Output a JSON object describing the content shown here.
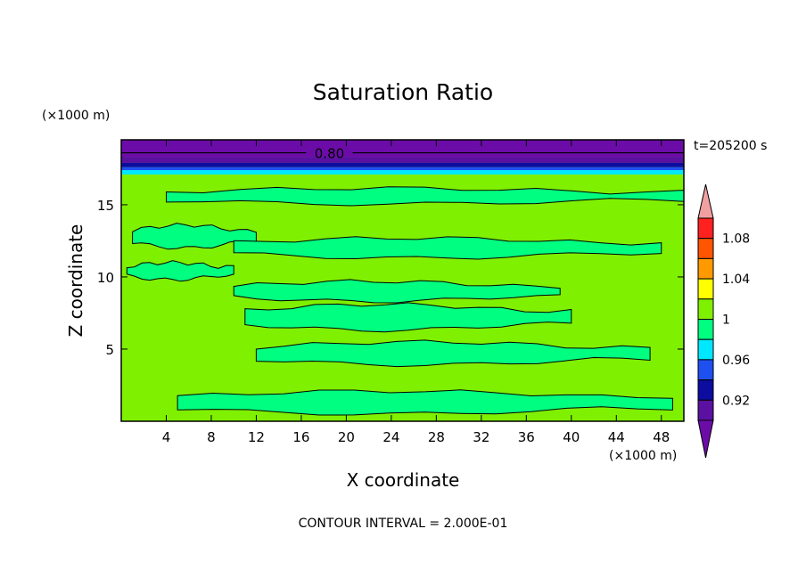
{
  "chart_data": {
    "type": "contour",
    "title": "Saturation Ratio",
    "xlabel": "X coordinate",
    "ylabel": "Z coordinate",
    "x_units": "(×1000 m)",
    "y_units": "(×1000 m)",
    "xlim": [
      0,
      50
    ],
    "ylim": [
      0,
      19.5
    ],
    "x_ticks": [
      4,
      8,
      12,
      16,
      20,
      24,
      28,
      32,
      36,
      40,
      44,
      48
    ],
    "y_ticks": [
      5,
      10,
      15
    ],
    "time_label": "t=205200 s",
    "contour_line_label": "0.80",
    "footer": "CONTOUR INTERVAL = 2.000E-01",
    "colorbar": {
      "tick_labels": [
        "1.08",
        "1.04",
        "1",
        "0.96",
        "0.92"
      ],
      "tick_values": [
        1.08,
        1.04,
        1.0,
        0.96,
        0.92
      ],
      "levels": [
        {
          "min": null,
          "max": 0.9,
          "color": "#6c0ca8"
        },
        {
          "min": 0.9,
          "max": 0.92,
          "color": "#5a10a0"
        },
        {
          "min": 0.92,
          "max": 0.94,
          "color": "#0c0ca0"
        },
        {
          "min": 0.94,
          "max": 0.96,
          "color": "#1e50f0"
        },
        {
          "min": 0.96,
          "max": 0.98,
          "color": "#00e8ff"
        },
        {
          "min": 0.98,
          "max": 1.0,
          "color": "#00ff80"
        },
        {
          "min": 1.0,
          "max": 1.02,
          "color": "#7ff000"
        },
        {
          "min": 1.02,
          "max": 1.04,
          "color": "#ffff00"
        },
        {
          "min": 1.04,
          "max": 1.06,
          "color": "#ff9900"
        },
        {
          "min": 1.06,
          "max": 1.08,
          "color": "#ff5500"
        },
        {
          "min": 1.08,
          "max": 1.1,
          "color": "#ff2020"
        },
        {
          "min": 1.1,
          "max": null,
          "color": "#f0a0a0"
        }
      ]
    },
    "field": {
      "background_value_range": [
        1.0,
        1.02
      ],
      "top_layers": [
        {
          "z_min": 18.3,
          "z_max": 19.5,
          "color": "#6c0ca8"
        },
        {
          "z_min": 17.9,
          "z_max": 18.3,
          "color": "#5a10a0"
        },
        {
          "z_min": 17.6,
          "z_max": 17.9,
          "color": "#0c0ca0"
        },
        {
          "z_min": 17.4,
          "z_max": 17.6,
          "color": "#1e50f0"
        },
        {
          "z_min": 17.1,
          "z_max": 17.4,
          "color": "#00e8ff"
        }
      ],
      "subsaturated_bands": [
        {
          "x_start": 4.0,
          "x_end": 50.0,
          "z_center": 15.6,
          "thickness": 1.1
        },
        {
          "x_start": 1.0,
          "x_end": 12.0,
          "z_center": 12.8,
          "thickness": 1.6
        },
        {
          "x_start": 10.0,
          "x_end": 48.0,
          "z_center": 12.0,
          "thickness": 1.4
        },
        {
          "x_start": 0.5,
          "x_end": 10.0,
          "z_center": 10.4,
          "thickness": 1.2
        },
        {
          "x_start": 10.0,
          "x_end": 39.0,
          "z_center": 9.0,
          "thickness": 1.4
        },
        {
          "x_start": 11.0,
          "x_end": 40.0,
          "z_center": 7.2,
          "thickness": 1.8
        },
        {
          "x_start": 12.0,
          "x_end": 47.0,
          "z_center": 4.7,
          "thickness": 1.6
        },
        {
          "x_start": 5.0,
          "x_end": 49.0,
          "z_center": 1.3,
          "thickness": 1.6
        }
      ]
    }
  }
}
